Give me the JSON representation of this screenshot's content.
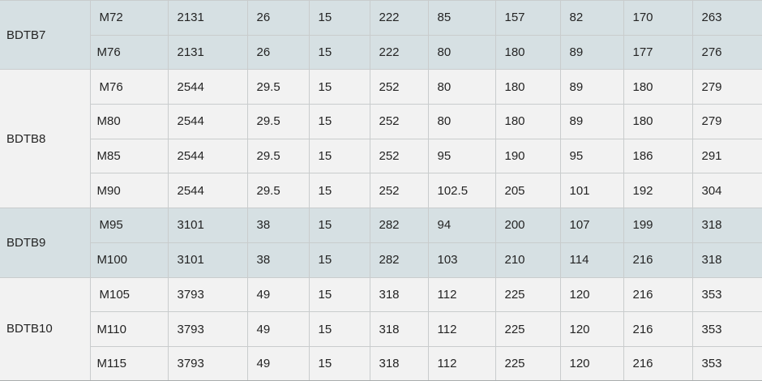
{
  "colors": {
    "highlight_row": "#d6e0e3",
    "plain_row": "#f2f2f2",
    "grid_border": "#c9cccd",
    "text": "#242424"
  },
  "table": {
    "groups": [
      {
        "label": "BDTB7",
        "highlighted": true,
        "rows": [
          {
            "size": "M72",
            "values": [
              "2131",
              "26",
              "15",
              "222",
              "85",
              "157",
              "82",
              "170",
              "263"
            ]
          },
          {
            "size": "M76",
            "values": [
              "2131",
              "26",
              "15",
              "222",
              "80",
              "180",
              "89",
              "177",
              "276"
            ]
          }
        ]
      },
      {
        "label": "BDTB8",
        "highlighted": false,
        "rows": [
          {
            "size": "M76",
            "values": [
              "2544",
              "29.5",
              "15",
              "252",
              "80",
              "180",
              "89",
              "180",
              "279"
            ]
          },
          {
            "size": "M80",
            "values": [
              "2544",
              "29.5",
              "15",
              "252",
              "80",
              "180",
              "89",
              "180",
              "279"
            ]
          },
          {
            "size": "M85",
            "values": [
              "2544",
              "29.5",
              "15",
              "252",
              "95",
              "190",
              "95",
              "186",
              "291"
            ]
          },
          {
            "size": "M90",
            "values": [
              "2544",
              "29.5",
              "15",
              "252",
              "102.5",
              "205",
              "101",
              "192",
              "304"
            ]
          }
        ]
      },
      {
        "label": "BDTB9",
        "highlighted": true,
        "rows": [
          {
            "size": "M95",
            "values": [
              "3101",
              "38",
              "15",
              "282",
              "94",
              "200",
              "107",
              "199",
              "318"
            ]
          },
          {
            "size": "M100",
            "values": [
              "3101",
              "38",
              "15",
              "282",
              "103",
              "210",
              "114",
              "216",
              "318"
            ]
          }
        ]
      },
      {
        "label": "BDTB10",
        "highlighted": false,
        "rows": [
          {
            "size": "M105",
            "values": [
              "3793",
              "49",
              "15",
              "318",
              "112",
              "225",
              "120",
              "216",
              "353"
            ]
          },
          {
            "size": "M110",
            "values": [
              "3793",
              "49",
              "15",
              "318",
              "112",
              "225",
              "120",
              "216",
              "353"
            ]
          },
          {
            "size": "M115",
            "values": [
              "3793",
              "49",
              "15",
              "318",
              "112",
              "225",
              "120",
              "216",
              "353"
            ]
          }
        ]
      }
    ]
  }
}
